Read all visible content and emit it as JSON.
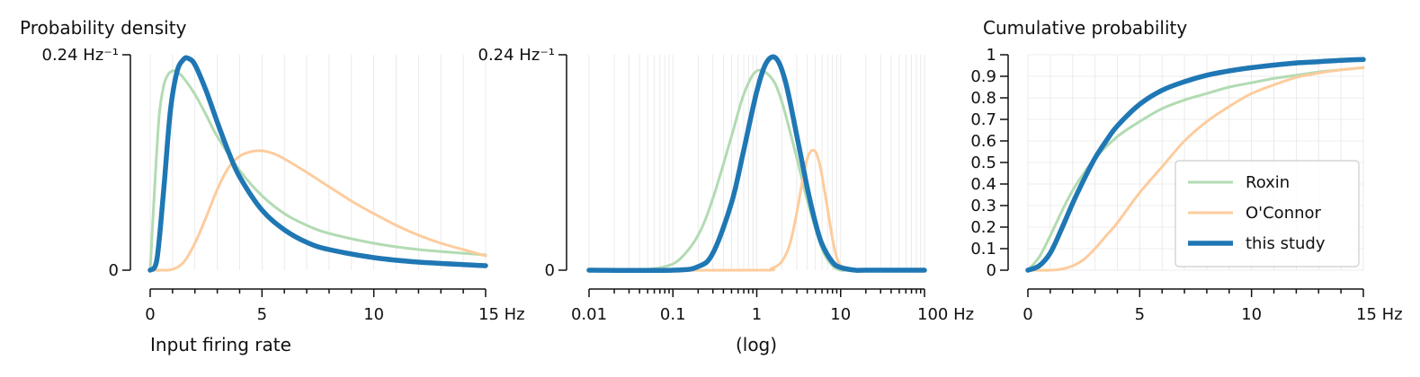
{
  "chart_data": [
    {
      "id": "pdf_linear",
      "type": "line",
      "ylabel": "Probability density",
      "xlabel": "Input firing rate",
      "xlim": [
        0,
        15
      ],
      "ylim": [
        0,
        0.24
      ],
      "xticks": [
        0,
        5,
        10,
        15
      ],
      "xtick_labels": [
        "0",
        "5",
        "10",
        "15 Hz"
      ],
      "yticks": [
        0,
        0.24
      ],
      "ytick_labels": [
        "0",
        "0.24 Hz⁻¹"
      ],
      "grid": true,
      "series": [
        {
          "name": "Roxin",
          "color": "#b2dbb2",
          "width": 3,
          "x": [
            0,
            0.2,
            0.4,
            0.6,
            0.8,
            1.0,
            1.2,
            1.5,
            2,
            2.5,
            3,
            4,
            5,
            6,
            7,
            8,
            10,
            12,
            15
          ],
          "y": [
            0,
            0.092,
            0.171,
            0.205,
            0.218,
            0.222,
            0.221,
            0.214,
            0.196,
            0.173,
            0.149,
            0.111,
            0.083,
            0.063,
            0.05,
            0.041,
            0.03,
            0.023,
            0.017
          ]
        },
        {
          "name": "O'Connor",
          "color": "#fdcc9d",
          "width": 3,
          "x": [
            0,
            0.5,
            1,
            1.5,
            2,
            2.5,
            3,
            3.5,
            4,
            4.5,
            5,
            5.5,
            6,
            7,
            8,
            9,
            10,
            11,
            12,
            13,
            14,
            15
          ],
          "y": [
            0,
            0.0,
            0.001,
            0.009,
            0.03,
            0.059,
            0.09,
            0.114,
            0.127,
            0.132,
            0.133,
            0.13,
            0.124,
            0.109,
            0.093,
            0.077,
            0.063,
            0.05,
            0.039,
            0.03,
            0.023,
            0.016
          ]
        },
        {
          "name": "this study",
          "color": "#1f77b4",
          "width": 5.5,
          "x": [
            0,
            0.3,
            0.6,
            0.9,
            1.2,
            1.5,
            1.7,
            2,
            2.5,
            3,
            3.5,
            4,
            5,
            6,
            7,
            8,
            10,
            12,
            15
          ],
          "y": [
            0,
            0.012,
            0.088,
            0.177,
            0.221,
            0.235,
            0.236,
            0.229,
            0.2,
            0.165,
            0.132,
            0.104,
            0.067,
            0.045,
            0.031,
            0.023,
            0.014,
            0.009,
            0.005
          ]
        }
      ]
    },
    {
      "id": "pdf_log",
      "type": "line",
      "xlabel": "(log)",
      "xscale": "log",
      "xlim": [
        0.01,
        100
      ],
      "ylim": [
        0,
        0.24
      ],
      "xticks": [
        0.01,
        0.1,
        1,
        10,
        100
      ],
      "xtick_labels": [
        "0.01",
        "0.1",
        "1",
        "10",
        "100 Hz"
      ],
      "yticks": [
        0,
        0.24
      ],
      "ytick_labels": [
        "0",
        "0.24 Hz⁻¹"
      ],
      "grid": true,
      "series": [
        {
          "name": "Roxin",
          "color": "#b2dbb2",
          "width": 3,
          "x": [
            0.01,
            0.03,
            0.05,
            0.08,
            0.12,
            0.2,
            0.3,
            0.5,
            0.7,
            1.0,
            1.5,
            2,
            3,
            4,
            6,
            8,
            10,
            12,
            15
          ],
          "y": [
            0,
            0.0,
            0.001,
            0.004,
            0.012,
            0.039,
            0.08,
            0.149,
            0.196,
            0.222,
            0.214,
            0.187,
            0.125,
            0.078,
            0.024,
            0.005,
            0.0,
            0.0,
            0.0
          ]
        },
        {
          "name": "O'Connor",
          "color": "#fdcc9d",
          "width": 3,
          "x": [
            0.01,
            1,
            1.5,
            2,
            2.5,
            3,
            3.5,
            4,
            4.5,
            5,
            5.5,
            6,
            7,
            8,
            9,
            10,
            12,
            15,
            20,
            100
          ],
          "y": [
            0,
            0.0,
            0.002,
            0.01,
            0.03,
            0.064,
            0.099,
            0.124,
            0.133,
            0.132,
            0.122,
            0.105,
            0.068,
            0.035,
            0.014,
            0.005,
            0.0,
            0.0,
            0.0,
            0.0
          ]
        },
        {
          "name": "this study",
          "color": "#1f77b4",
          "width": 5.5,
          "x": [
            0.01,
            0.1,
            0.2,
            0.3,
            0.5,
            0.7,
            1.0,
            1.3,
            1.7,
            2.2,
            3,
            4,
            5,
            6,
            8,
            10,
            15,
            20,
            100
          ],
          "y": [
            0,
            0.0,
            0.004,
            0.019,
            0.075,
            0.134,
            0.199,
            0.231,
            0.236,
            0.21,
            0.15,
            0.092,
            0.053,
            0.029,
            0.009,
            0.003,
            0.0,
            0.0,
            0.0
          ]
        }
      ]
    },
    {
      "id": "cdf_linear",
      "type": "line",
      "ylabel": "Cumulative probability",
      "xlim": [
        0,
        15
      ],
      "ylim": [
        0,
        1
      ],
      "xticks": [
        0,
        5,
        10,
        15
      ],
      "xtick_labels": [
        "0",
        "5",
        "10",
        "15 Hz"
      ],
      "yticks": [
        0,
        0.1,
        0.2,
        0.3,
        0.4,
        0.5,
        0.6,
        0.7,
        0.8,
        0.9,
        1
      ],
      "ytick_labels": [
        "0",
        "0.1",
        "0.2",
        "0.3",
        "0.4",
        "0.5",
        "0.6",
        "0.7",
        "0.8",
        "0.9",
        "1"
      ],
      "grid": true,
      "legend": "lower-right",
      "series": [
        {
          "name": "Roxin",
          "color": "#b2dbb2",
          "width": 3,
          "x": [
            0,
            0.5,
            1,
            1.5,
            2,
            2.5,
            3,
            4,
            5,
            6,
            7,
            8,
            9,
            10,
            11,
            12,
            13,
            14,
            15
          ],
          "y": [
            0,
            0.06,
            0.16,
            0.27,
            0.37,
            0.45,
            0.52,
            0.62,
            0.69,
            0.75,
            0.79,
            0.82,
            0.85,
            0.87,
            0.89,
            0.905,
            0.92,
            0.93,
            0.94
          ]
        },
        {
          "name": "O'Connor",
          "color": "#fdcc9d",
          "width": 3,
          "x": [
            0,
            1,
            1.5,
            2,
            2.5,
            3,
            3.5,
            4,
            5,
            6,
            7,
            8,
            9,
            10,
            11,
            12,
            13,
            14,
            15
          ],
          "y": [
            0,
            0.0,
            0.005,
            0.02,
            0.05,
            0.1,
            0.16,
            0.22,
            0.36,
            0.48,
            0.6,
            0.69,
            0.76,
            0.82,
            0.86,
            0.895,
            0.915,
            0.93,
            0.94
          ]
        },
        {
          "name": "this study",
          "color": "#1f77b4",
          "width": 5.5,
          "x": [
            0,
            0.5,
            1,
            1.5,
            2,
            2.5,
            3,
            3.5,
            4,
            5,
            6,
            7,
            8,
            9,
            10,
            11,
            12,
            13,
            14,
            15
          ],
          "y": [
            0,
            0.02,
            0.08,
            0.19,
            0.31,
            0.42,
            0.52,
            0.6,
            0.67,
            0.77,
            0.835,
            0.875,
            0.905,
            0.925,
            0.94,
            0.952,
            0.962,
            0.968,
            0.974,
            0.978
          ]
        }
      ]
    }
  ]
}
